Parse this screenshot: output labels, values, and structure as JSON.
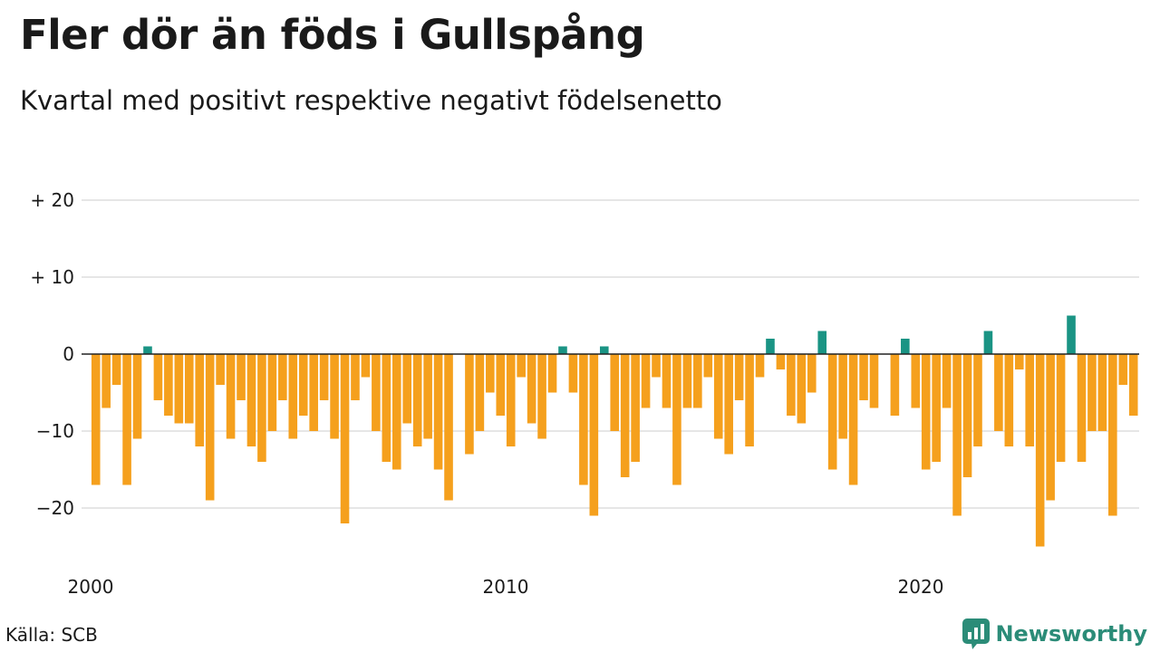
{
  "title": "Fler dör än föds i Gullspång",
  "subtitle": "Kvartal med positivt respektive negativt födelsenetto",
  "source": "Källa: SCB",
  "brand": "Newsworthy",
  "colors": {
    "positive": "#1a9484",
    "negative": "#f5a01d",
    "grid": "#dddddd",
    "axis": "#222222"
  },
  "chart_data": {
    "type": "bar",
    "title": "Fler dör än föds i Gullspång",
    "subtitle": "Kvartal med positivt respektive negativt födelsenetto",
    "xlabel": "",
    "ylabel": "",
    "start_year": 2000,
    "periods_per_year": 4,
    "ylim": [
      -27,
      22
    ],
    "y_ticks": [
      {
        "value": 20,
        "label": "+ 20"
      },
      {
        "value": 10,
        "label": "+ 10"
      },
      {
        "value": 0,
        "label": "0"
      },
      {
        "value": -10,
        "label": "−10"
      },
      {
        "value": -20,
        "label": "−20"
      }
    ],
    "x_ticks": [
      {
        "year": 2000,
        "label": "2000"
      },
      {
        "year": 2010,
        "label": "2010"
      },
      {
        "year": 2020,
        "label": "2020"
      }
    ],
    "grid": true,
    "values": [
      -17,
      -7,
      -4,
      -17,
      -11,
      1,
      -6,
      -8,
      -9,
      -9,
      -12,
      -19,
      -4,
      -11,
      -6,
      -12,
      -14,
      -10,
      -6,
      -11,
      -8,
      -10,
      -6,
      -11,
      -22,
      -6,
      -3,
      -10,
      -14,
      -15,
      -9,
      -12,
      -11,
      -15,
      -19,
      0,
      -13,
      -10,
      -5,
      -8,
      -12,
      -3,
      -9,
      -11,
      -5,
      1,
      -5,
      -17,
      -21,
      1,
      -10,
      -16,
      -14,
      -7,
      -3,
      -7,
      -17,
      -7,
      -7,
      -3,
      -11,
      -13,
      -6,
      -12,
      -3,
      2,
      -2,
      -8,
      -9,
      -5,
      3,
      -15,
      -11,
      -17,
      -6,
      -7,
      0,
      -8,
      2,
      -7,
      -15,
      -14,
      -7,
      -21,
      -16,
      -12,
      3,
      -10,
      -12,
      -2,
      -12,
      -25,
      -19,
      -14,
      5,
      -14,
      -10,
      -10,
      -21,
      -4,
      -8
    ]
  }
}
